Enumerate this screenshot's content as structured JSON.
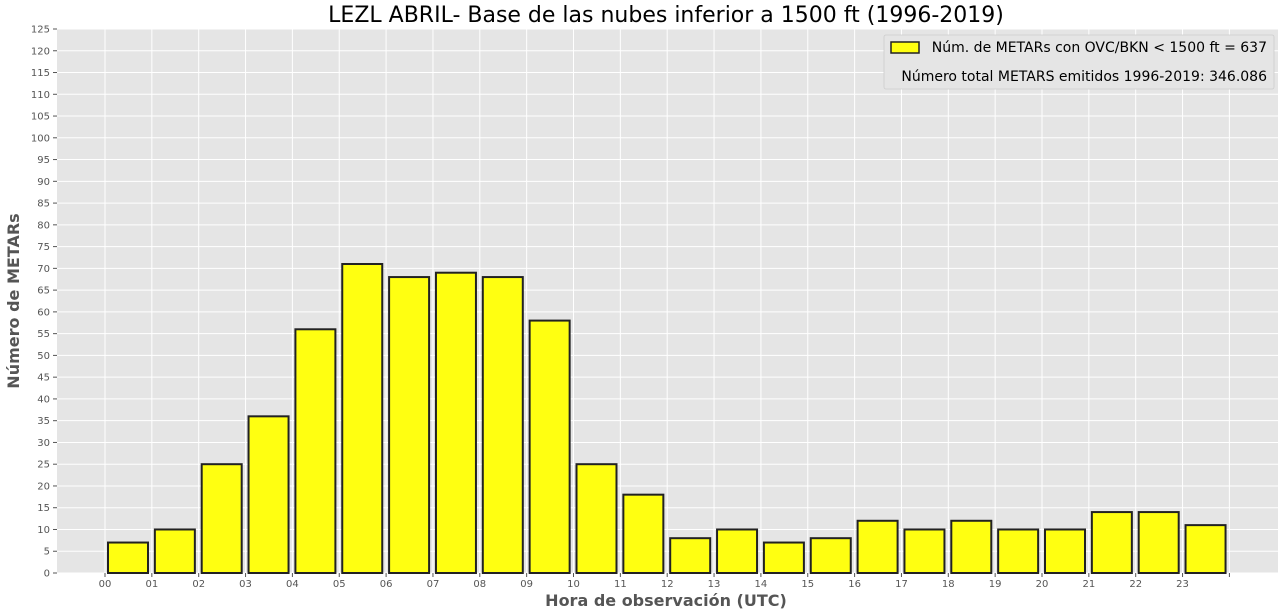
{
  "chart_data": {
    "type": "bar",
    "title": "LEZL ABRIL- Base de las nubes inferior a 1500 ft (1996-2019)",
    "xlabel": "Hora de observación (UTC)",
    "ylabel": "Número de METARs",
    "categories": [
      "00",
      "01",
      "02",
      "03",
      "04",
      "05",
      "06",
      "07",
      "08",
      "09",
      "10",
      "11",
      "12",
      "13",
      "14",
      "15",
      "16",
      "17",
      "18",
      "19",
      "20",
      "21",
      "22",
      "23"
    ],
    "series": [
      {
        "name": "Núm. de METARs con OVC/BKN < 1500 ft = 637",
        "values": [
          7,
          10,
          25,
          36,
          56,
          71,
          68,
          69,
          68,
          58,
          25,
          18,
          8,
          10,
          7,
          8,
          12,
          10,
          12,
          10,
          10,
          14,
          14,
          11
        ]
      }
    ],
    "annotation": "Número total METARS emitidos 1996-2019: 346.086",
    "ylim": [
      0,
      125
    ],
    "ytick_step": 5,
    "grid": true,
    "legend_position": "top-right",
    "colors": {
      "bar_fill": "#ffff11",
      "bar_edge": "#222222",
      "plot_background": "#e5e5e5",
      "grid": "#ffffff"
    }
  }
}
